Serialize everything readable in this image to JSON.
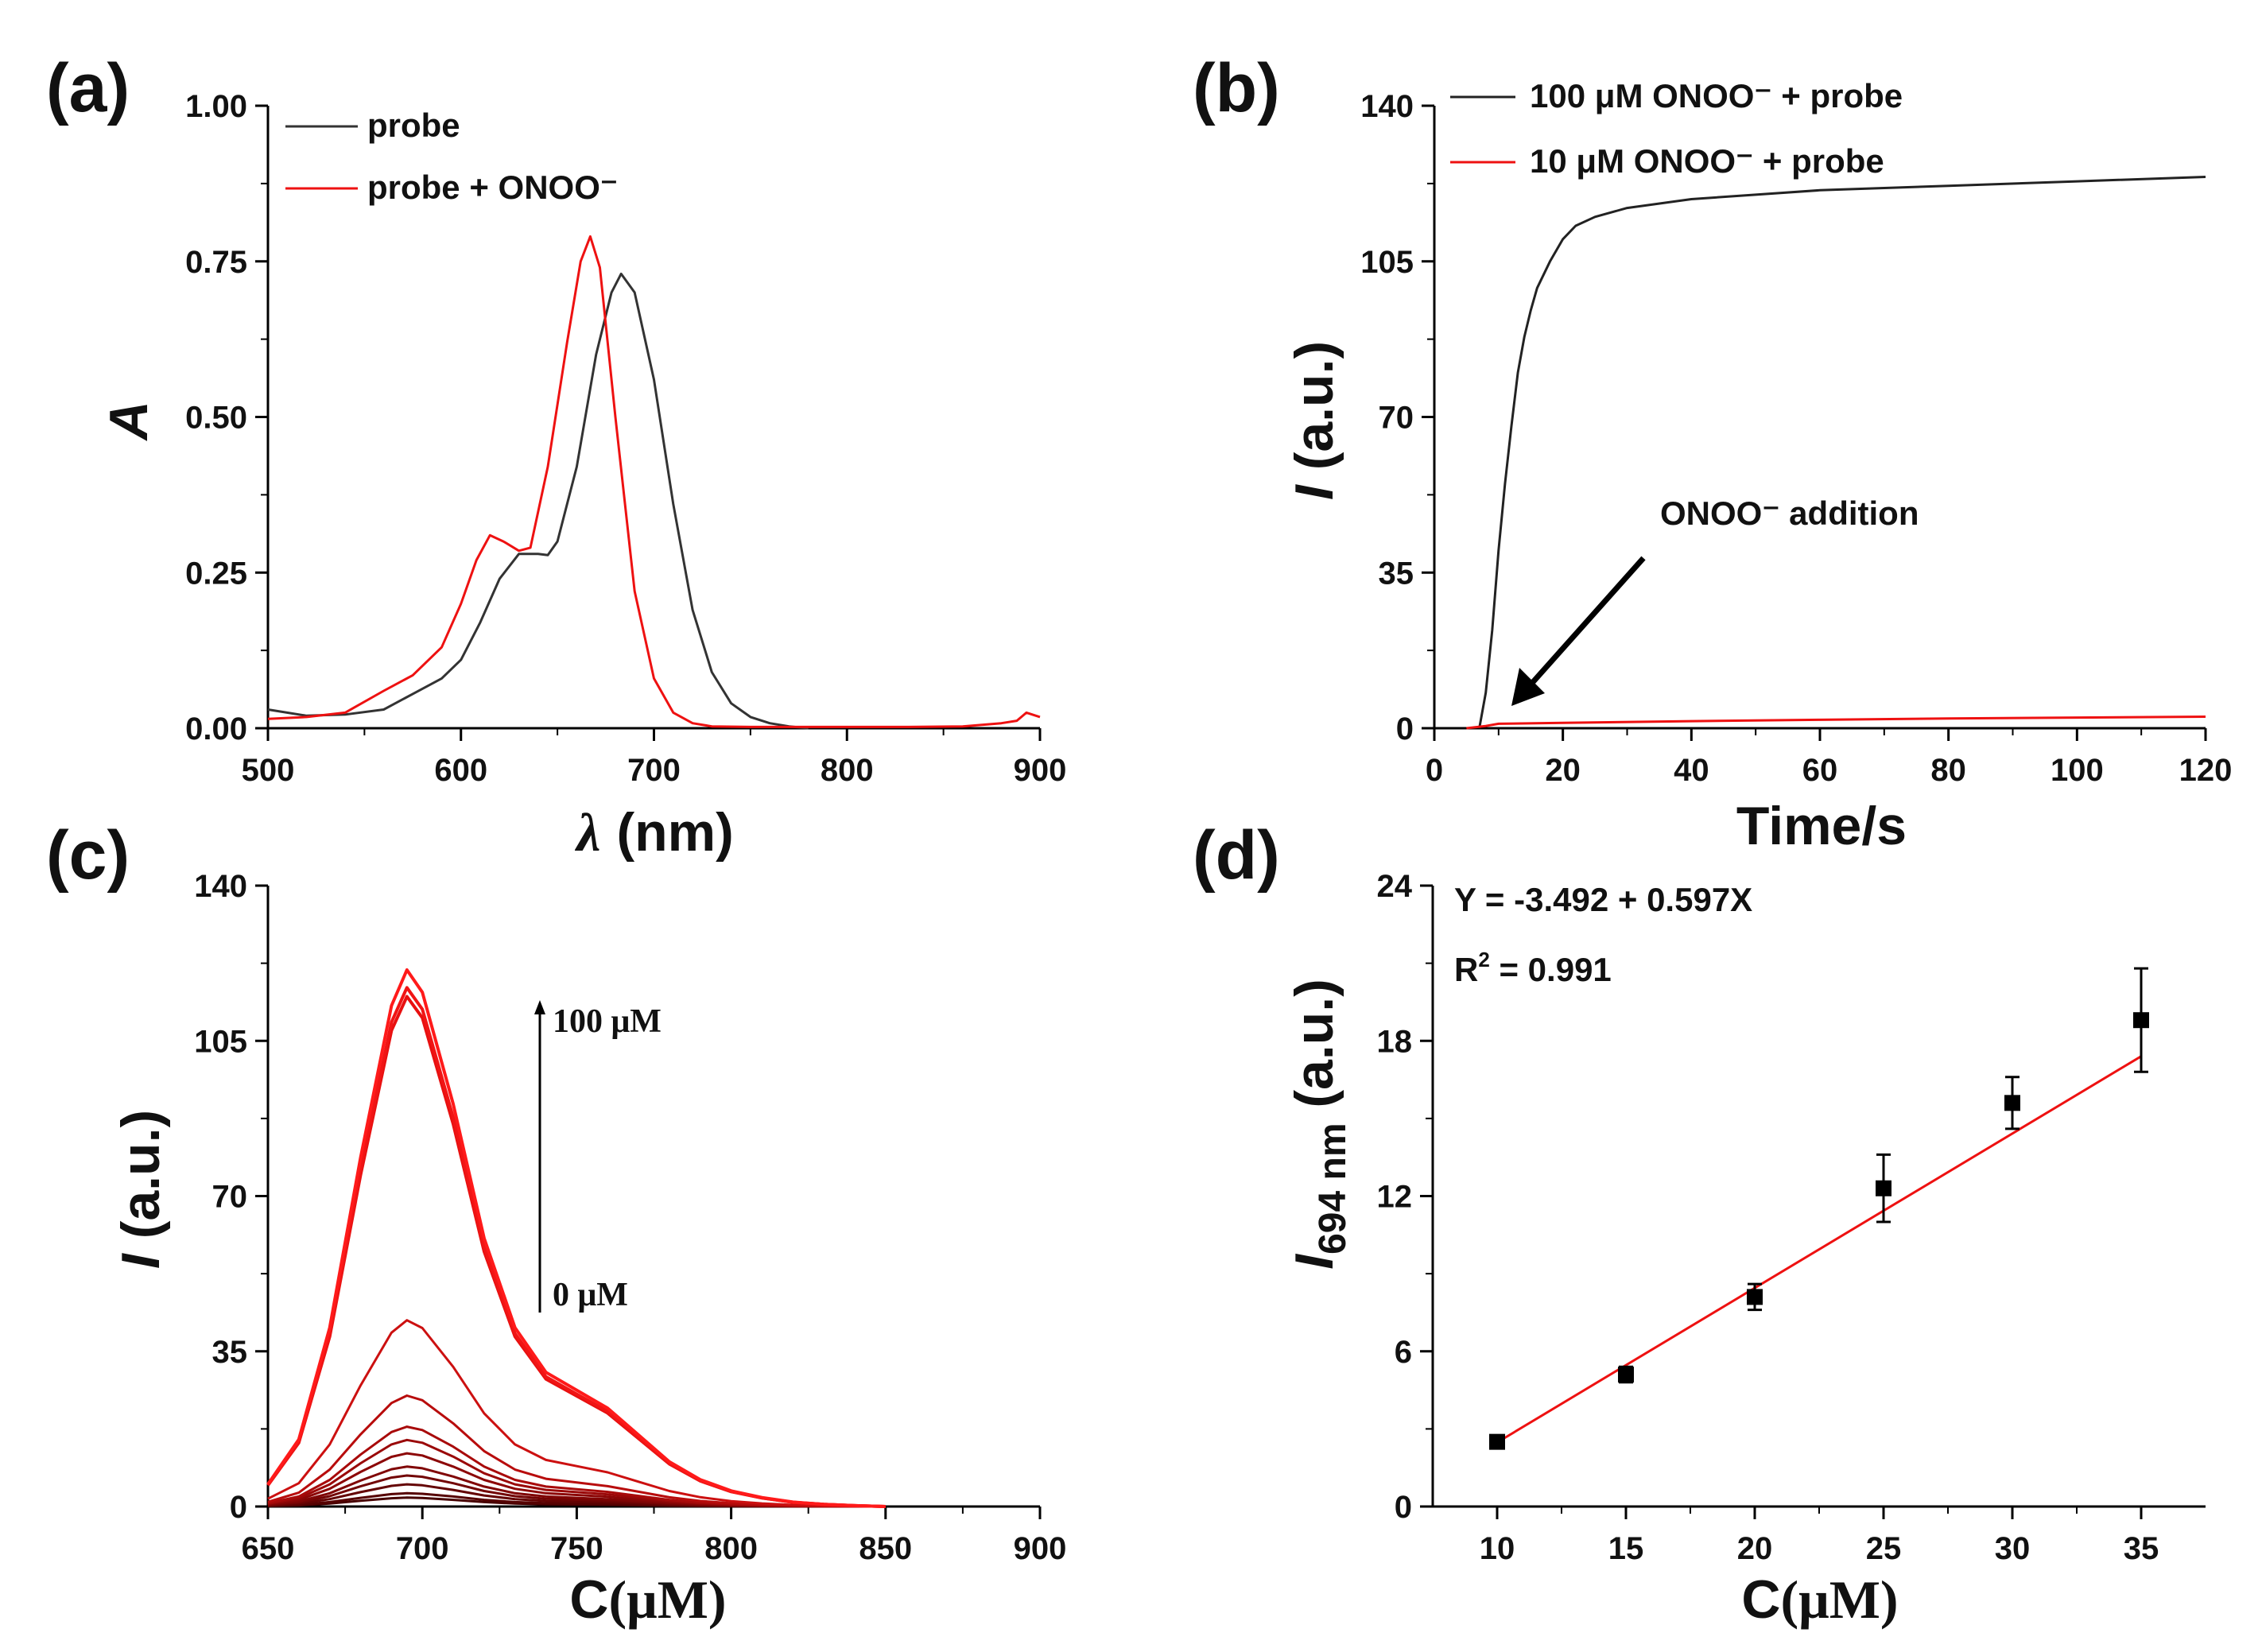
{
  "chart_data": [
    {
      "panel_label": "(a)",
      "type": "line",
      "xlabel_symbol": "λ",
      "xlabel_unit": "(nm)",
      "ylabel": "A",
      "xlim": [
        500,
        900
      ],
      "ylim": [
        0,
        1.0
      ],
      "xticks": [
        "500",
        "600",
        "700",
        "800",
        "900"
      ],
      "yticks": [
        "0.00",
        "0.25",
        "0.50",
        "0.75",
        "1.00"
      ],
      "legend_position": "top-left",
      "series": [
        {
          "name": "probe",
          "color": "#333333",
          "x": [
            500,
            520,
            540,
            560,
            575,
            590,
            600,
            610,
            620,
            630,
            640,
            645,
            650,
            660,
            670,
            678,
            683,
            690,
            700,
            710,
            720,
            730,
            740,
            750,
            760,
            770,
            780
          ],
          "y": [
            0.03,
            0.02,
            0.022,
            0.03,
            0.055,
            0.08,
            0.11,
            0.17,
            0.24,
            0.28,
            0.28,
            0.278,
            0.3,
            0.42,
            0.6,
            0.7,
            0.73,
            0.7,
            0.56,
            0.36,
            0.19,
            0.09,
            0.04,
            0.018,
            0.008,
            0.003,
            0.0
          ]
        },
        {
          "name": "probe + ONOO⁻",
          "color": "#ee1111",
          "x": [
            500,
            520,
            540,
            560,
            575,
            590,
            600,
            608,
            615,
            622,
            630,
            636,
            645,
            655,
            662,
            667,
            672,
            680,
            690,
            700,
            710,
            720,
            730,
            750,
            830,
            860,
            880,
            888,
            893,
            900
          ],
          "y": [
            0.015,
            0.018,
            0.025,
            0.06,
            0.085,
            0.13,
            0.2,
            0.27,
            0.31,
            0.3,
            0.285,
            0.29,
            0.42,
            0.62,
            0.75,
            0.79,
            0.74,
            0.5,
            0.22,
            0.08,
            0.025,
            0.008,
            0.003,
            0.002,
            0.002,
            0.003,
            0.008,
            0.012,
            0.025,
            0.018
          ]
        }
      ]
    },
    {
      "panel_label": "(b)",
      "type": "line",
      "xlabel": "Time/s",
      "ylabel_italic": "I",
      "ylabel_rest": " (a.u.)",
      "xlim": [
        0,
        120
      ],
      "ylim": [
        0,
        140
      ],
      "xticks": [
        "0",
        "20",
        "40",
        "60",
        "80",
        "100",
        "120"
      ],
      "yticks": [
        "0",
        "35",
        "70",
        "105",
        "140"
      ],
      "legend_position": "top",
      "annotation": "ONOO⁻ addition",
      "arrow_target": {
        "x": 12,
        "y": 5
      },
      "series": [
        {
          "name": "100  μM ONOO⁻ + probe",
          "color": "#222222",
          "x": [
            7,
            8,
            9,
            10,
            11,
            12,
            13,
            14,
            15,
            16,
            18,
            20,
            22,
            25,
            30,
            40,
            50,
            60,
            80,
            100,
            120
          ],
          "y": [
            0,
            8,
            22,
            40,
            55,
            68,
            80,
            88,
            94,
            99,
            105,
            110,
            113,
            115,
            117,
            119,
            120,
            121,
            122,
            123,
            124
          ]
        },
        {
          "name": "10 μM ONOO⁻ + probe",
          "color": "#ee1111",
          "x": [
            5,
            8,
            10,
            20,
            40,
            60,
            80,
            100,
            120
          ],
          "y": [
            0,
            0.5,
            1,
            1.2,
            1.6,
            1.9,
            2.2,
            2.4,
            2.6
          ]
        }
      ]
    },
    {
      "panel_label": "(c)",
      "type": "line",
      "xlabel_main": "C",
      "xlabel_unit": "(μM)",
      "ylabel_italic": "I",
      "ylabel_rest": " (a.u.)",
      "xlim": [
        650,
        900
      ],
      "ylim": [
        0,
        140
      ],
      "xticks": [
        "650",
        "700",
        "750",
        "800",
        "850",
        "900"
      ],
      "yticks": [
        "0",
        "35",
        "70",
        "105",
        "140"
      ],
      "scale_top_label": "100 μM",
      "scale_bottom_label": "0 μM",
      "profile_x": [
        650,
        660,
        670,
        680,
        690,
        695,
        700,
        710,
        720,
        730,
        740,
        750,
        760,
        770,
        780,
        790,
        800,
        810,
        820,
        830,
        840,
        850
      ],
      "profile_y": [
        5,
        15,
        40,
        78,
        112,
        120,
        115,
        90,
        60,
        40,
        30,
        26,
        22,
        16,
        10,
        6,
        3.5,
        2,
        1,
        0.5,
        0.2,
        0
      ],
      "peak_intensities": [
        121,
        117,
        115,
        42,
        25,
        18,
        15,
        12,
        9,
        7,
        5,
        3,
        2
      ],
      "colors": [
        "#ff1a1a",
        "#f01515",
        "#e81010",
        "#cc1010",
        "#b80c0c",
        "#a80a0a",
        "#9a0808",
        "#8c0606",
        "#800505",
        "#720404",
        "#640303",
        "#560202",
        "#480101"
      ]
    },
    {
      "panel_label": "(d)",
      "type": "scatter",
      "xlabel_main": "C",
      "xlabel_unit": "(μM)",
      "ylabel_italic": "I",
      "ylabel_sub": "694 nm",
      "ylabel_rest": " (a.u.)",
      "xlim": [
        7.5,
        37.5
      ],
      "ylim": [
        0,
        24
      ],
      "xticks": [
        "10",
        "15",
        "20",
        "25",
        "30",
        "35"
      ],
      "yticks": [
        "0",
        "6",
        "12",
        "18",
        "24"
      ],
      "equation": "Y = -3.492 + 0.597X",
      "r2_label": "R",
      "r2_sup": "2",
      "r2_value": " = 0.991",
      "fit": {
        "intercept": -3.492,
        "slope": 0.597,
        "color": "#ee1111"
      },
      "x": [
        10,
        15,
        20,
        25,
        30,
        35
      ],
      "y": [
        2.5,
        5.1,
        8.1,
        12.3,
        15.6,
        18.8
      ],
      "err": [
        0.2,
        0.3,
        0.5,
        1.3,
        1.0,
        2.0
      ]
    }
  ]
}
